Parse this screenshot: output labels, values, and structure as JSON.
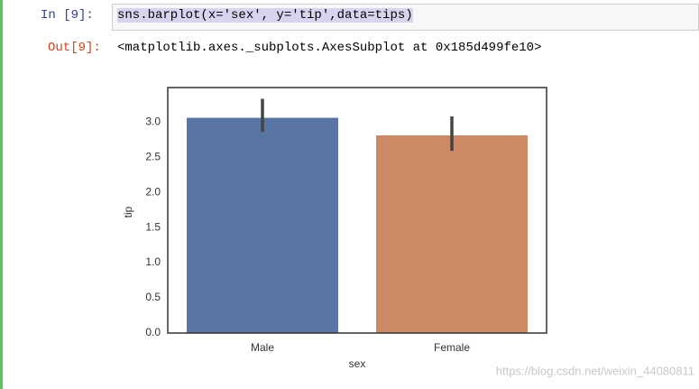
{
  "cell": {
    "in_prompt": "In  [9]:",
    "code": "sns.barplot(x='sex', y='tip',data=tips)",
    "out_prompt": "Out[9]:",
    "output": "<matplotlib.axes._subplots.AxesSubplot at 0x185d499fe10>"
  },
  "chart_data": {
    "type": "bar",
    "xlabel": "sex",
    "ylabel": "tip",
    "categories": [
      "Male",
      "Female"
    ],
    "values": [
      3.06,
      2.81
    ],
    "ci_low": [
      2.86,
      2.59
    ],
    "ci_high": [
      3.33,
      3.08
    ],
    "colors": [
      "#5975a4",
      "#cc8963"
    ],
    "errcolor": "#444444",
    "ylim": [
      0,
      3.49
    ],
    "yticks": [
      {
        "value": 0,
        "label": "0.0"
      },
      0.5,
      {
        "value": 1,
        "label": "1.0"
      },
      1.5,
      {
        "value": 2,
        "label": "2.0"
      },
      2.5,
      {
        "value": 3,
        "label": "3.0"
      }
    ],
    "grid": false
  },
  "watermark": "https://blog.csdn.net/weixin_44080811"
}
